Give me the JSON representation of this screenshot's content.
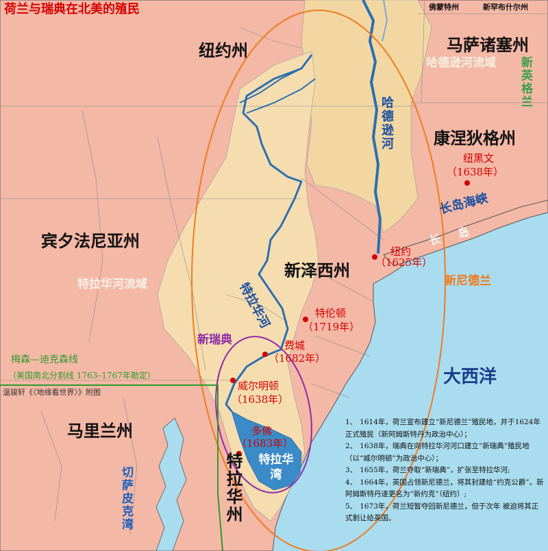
{
  "title": "荷兰与瑞典在北美的殖民",
  "top_states": {
    "vermont": "佛蒙特州",
    "new_hampshire": "新罕布什尔州"
  },
  "states": {
    "new_york": "纽约州",
    "massachusetts": "马萨诸塞州",
    "connecticut": "康涅狄格州",
    "pennsylvania": "宾夕法尼亚州",
    "new_jersey": "新泽西州",
    "maryland": "马里兰州",
    "delaware": "特拉华州"
  },
  "regions": {
    "hudson_basin": "哈德逊河流域",
    "delaware_basin": "特拉华河流域",
    "new_england": "新英格兰",
    "new_netherland": "新尼德兰",
    "new_sweden": "新瑞典",
    "atlantic": "大西洋"
  },
  "water": {
    "hudson_river": "哈德逊河",
    "delaware_river": "特拉华河",
    "long_island_sound": "长岛海峡",
    "long_island": "长岛",
    "delaware_bay": "特拉华湾",
    "chesapeake_bay": "切萨皮克湾"
  },
  "cities": [
    {
      "id": "new-haven",
      "name": "纽黑文",
      "year": "（1638年）"
    },
    {
      "id": "new-york",
      "name": "纽约",
      "year": "（1625年）"
    },
    {
      "id": "trenton",
      "name": "特伦顿",
      "year": "（1719年）"
    },
    {
      "id": "philadelphia",
      "name": "费城",
      "year": "（1682年）"
    },
    {
      "id": "wilmington",
      "name": "威尔明顿",
      "year": "（1638年）"
    },
    {
      "id": "dover",
      "name": "多佛",
      "year": "（1683年）"
    }
  ],
  "mason_dixon": {
    "line": "梅森—迪克森线",
    "note": "（美国南北分割线 1763–1767年勘定）"
  },
  "credit": "温骏轩《〈地缘看世界〉》附图",
  "notes": [
    {
      "num": "1、",
      "text": "1614年，荷兰宣布建立“新尼德兰”殖民地，并于1624年正式殖民（新阿姆斯特丹为政治中心）；"
    },
    {
      "num": "2、",
      "text": "1638年，瑞典在向特拉华河河口建立“新瑞典”殖民地（以“威尔明顿”为政治中心）；"
    },
    {
      "num": "3、",
      "text": "1655年，荷兰夺取“新瑞典”，扩张至特拉华河;"
    },
    {
      "num": "4、",
      "text": "1664年，英国占领新尼德兰，将其封建给“约克公爵”。新阿姆斯特丹遂更名为“新约克”（纽约）;"
    },
    {
      "num": "5、",
      "text": "1673年，荷兰短暂夺回新尼德兰，但于次年 被迫将其正式割让给英国。"
    }
  ],
  "colors": {
    "land": "#f4b8a6",
    "delaware_basin": "#f6ddb0",
    "hudson_basin": "#f2d7a2",
    "ocean": "#a9dcef",
    "river": "#2b6fb0",
    "bay": "#3b8bc8",
    "new_netherland_ellipse": "#f07b1d",
    "new_sweden_ellipse": "#8e2ba8",
    "mason_dixon": "#2f9a2f",
    "city_red": "#d40000"
  }
}
